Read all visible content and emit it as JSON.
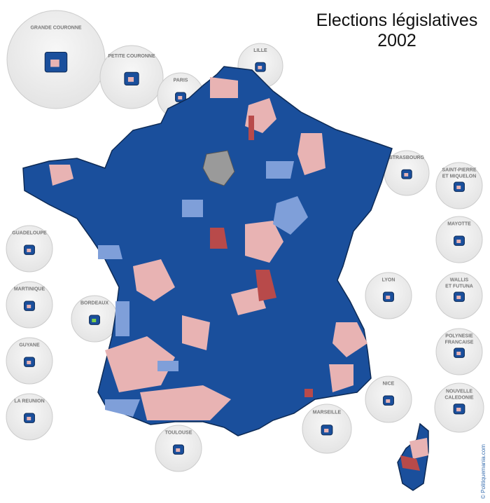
{
  "title": {
    "line1": "Elections législatives",
    "line2": "2002"
  },
  "insets": [
    {
      "lines": [
        "GRANDE COURONNE"
      ]
    },
    {
      "lines": [
        "PETITE COURONNE"
      ]
    },
    {
      "lines": [
        "PARIS"
      ]
    },
    {
      "lines": [
        "LILLE"
      ]
    },
    {
      "lines": [
        "STRASBOURG"
      ]
    },
    {
      "lines": [
        "SAINT-PIERRE",
        "ET MIQUELON"
      ]
    },
    {
      "lines": [
        "MAYOTTE"
      ]
    },
    {
      "lines": [
        "WALLIS",
        "ET FUTUNA"
      ]
    },
    {
      "lines": [
        "POLYNESIE",
        "FRANCAISE"
      ]
    },
    {
      "lines": [
        "NOUVELLE",
        "CALEDONIE"
      ]
    },
    {
      "lines": [
        "GUADELOUPE"
      ]
    },
    {
      "lines": [
        "MARTINIQUE"
      ]
    },
    {
      "lines": [
        "GUYANE"
      ]
    },
    {
      "lines": [
        "LA REUNION"
      ]
    },
    {
      "lines": [
        "BORDEAUX"
      ]
    },
    {
      "lines": [
        "LYON"
      ]
    },
    {
      "lines": [
        "NICE"
      ]
    },
    {
      "lines": [
        "MARSEILLE"
      ]
    },
    {
      "lines": [
        "TOULOUSE"
      ]
    }
  ],
  "credit": "© Politiquemania.com"
}
